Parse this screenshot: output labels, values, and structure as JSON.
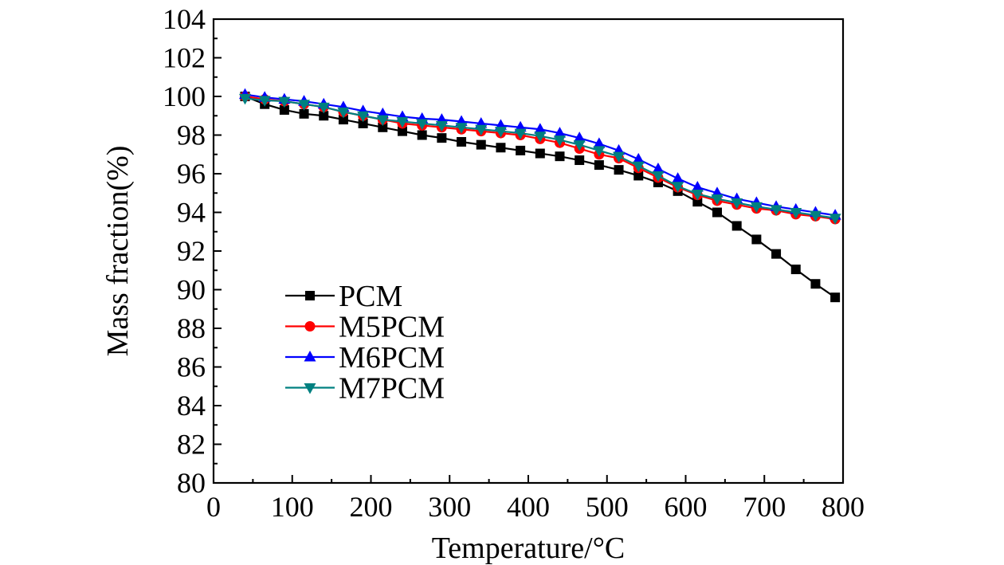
{
  "chart_data": {
    "type": "line",
    "title": "",
    "xlabel": "Temperature/°C",
    "ylabel": "Mass fraction(%)",
    "xlim": [
      0,
      800
    ],
    "ylim": [
      80,
      104
    ],
    "xticks": [
      0,
      100,
      200,
      300,
      400,
      500,
      600,
      700,
      800
    ],
    "yticks": [
      80,
      82,
      84,
      86,
      88,
      90,
      92,
      94,
      96,
      98,
      100,
      102,
      104
    ],
    "xtick_labels": [
      "0",
      "100",
      "200",
      "300",
      "400",
      "500",
      "600",
      "700",
      "800"
    ],
    "ytick_labels": [
      "80",
      "82",
      "84",
      "86",
      "88",
      "90",
      "92",
      "94",
      "96",
      "98",
      "100",
      "102",
      "104"
    ],
    "grid": false,
    "legend_position": "center-left",
    "x": [
      40,
      65,
      90,
      115,
      140,
      165,
      190,
      215,
      240,
      265,
      290,
      315,
      340,
      365,
      390,
      415,
      440,
      465,
      490,
      515,
      540,
      565,
      590,
      615,
      640,
      665,
      690,
      715,
      740,
      765,
      790
    ],
    "series": [
      {
        "name": "PCM",
        "color": "#000000",
        "marker": "square",
        "values": [
          100.0,
          99.6,
          99.3,
          99.1,
          99.0,
          98.8,
          98.6,
          98.4,
          98.2,
          98.0,
          97.85,
          97.65,
          97.5,
          97.35,
          97.2,
          97.05,
          96.9,
          96.7,
          96.45,
          96.2,
          95.9,
          95.55,
          95.1,
          94.55,
          94.0,
          93.3,
          92.6,
          91.85,
          91.05,
          90.3,
          89.6
        ]
      },
      {
        "name": "M5PCM",
        "color": "#ff0000",
        "marker": "circle",
        "values": [
          100.0,
          99.85,
          99.75,
          99.6,
          99.45,
          99.2,
          99.0,
          98.8,
          98.6,
          98.5,
          98.4,
          98.3,
          98.2,
          98.1,
          98.0,
          97.8,
          97.6,
          97.3,
          97.0,
          96.8,
          96.3,
          95.8,
          95.3,
          94.9,
          94.6,
          94.4,
          94.2,
          94.1,
          93.9,
          93.8,
          93.65
        ]
      },
      {
        "name": "M6PCM",
        "color": "#0000ff",
        "marker": "triangle-up",
        "values": [
          100.1,
          99.95,
          99.85,
          99.75,
          99.6,
          99.45,
          99.25,
          99.1,
          98.95,
          98.85,
          98.8,
          98.7,
          98.6,
          98.5,
          98.4,
          98.3,
          98.1,
          97.85,
          97.55,
          97.2,
          96.75,
          96.25,
          95.75,
          95.3,
          95.0,
          94.7,
          94.5,
          94.3,
          94.15,
          94.0,
          93.85
        ]
      },
      {
        "name": "M7PCM",
        "color": "#008080",
        "marker": "triangle-down",
        "values": [
          99.9,
          99.8,
          99.75,
          99.6,
          99.45,
          99.2,
          99.0,
          98.8,
          98.7,
          98.6,
          98.5,
          98.4,
          98.3,
          98.2,
          98.1,
          97.95,
          97.75,
          97.5,
          97.2,
          96.9,
          96.4,
          95.9,
          95.35,
          94.95,
          94.7,
          94.5,
          94.3,
          94.15,
          94.0,
          93.85,
          93.7
        ]
      }
    ]
  }
}
